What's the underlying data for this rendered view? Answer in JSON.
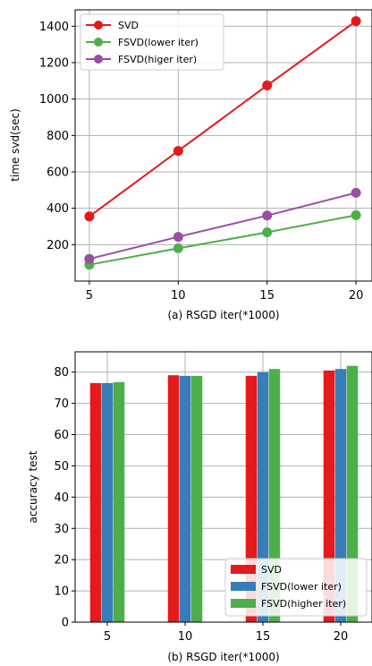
{
  "chart_data": [
    {
      "type": "line",
      "xlabel": "(a) RSGD iter(*1000)",
      "ylabel": "time svd(sec)",
      "x": [
        5,
        10,
        15,
        20
      ],
      "xlim": [
        4.2,
        20.9
      ],
      "ylim": [
        0,
        1490
      ],
      "xticks": [
        5,
        10,
        15,
        20
      ],
      "yticks": [
        200,
        400,
        600,
        800,
        1000,
        1200,
        1400
      ],
      "grid": true,
      "legend_position": "top-left",
      "series": [
        {
          "name": "SVD",
          "color": "#e31a1c",
          "values": [
            355,
            715,
            1075,
            1428
          ]
        },
        {
          "name": "FSVD(lower iter)",
          "color": "#4daf4a",
          "values": [
            90,
            180,
            268,
            362
          ]
        },
        {
          "name": "FSVD(higer iter)",
          "color": "#984ea3",
          "values": [
            122,
            243,
            360,
            485
          ]
        }
      ]
    },
    {
      "type": "bar",
      "xlabel": "(b) RSGD iter(*1000)",
      "ylabel": "accuracy test",
      "categories": [
        "5",
        "10",
        "15",
        "20"
      ],
      "ylim": [
        0,
        86.5
      ],
      "yticks": [
        0,
        10,
        20,
        30,
        40,
        50,
        60,
        70,
        80
      ],
      "grid": true,
      "legend_position": "bottom-right",
      "series": [
        {
          "name": "SVD",
          "color": "#e41a1c",
          "values": [
            76.5,
            79.0,
            78.8,
            80.5
          ]
        },
        {
          "name": "FSVD(lower iter)",
          "color": "#377eb8",
          "values": [
            76.5,
            78.8,
            80.0,
            81.0
          ]
        },
        {
          "name": "FSVD(higher iter)",
          "color": "#4daf4a",
          "values": [
            76.8,
            78.8,
            81.0,
            82.0
          ]
        }
      ]
    }
  ]
}
